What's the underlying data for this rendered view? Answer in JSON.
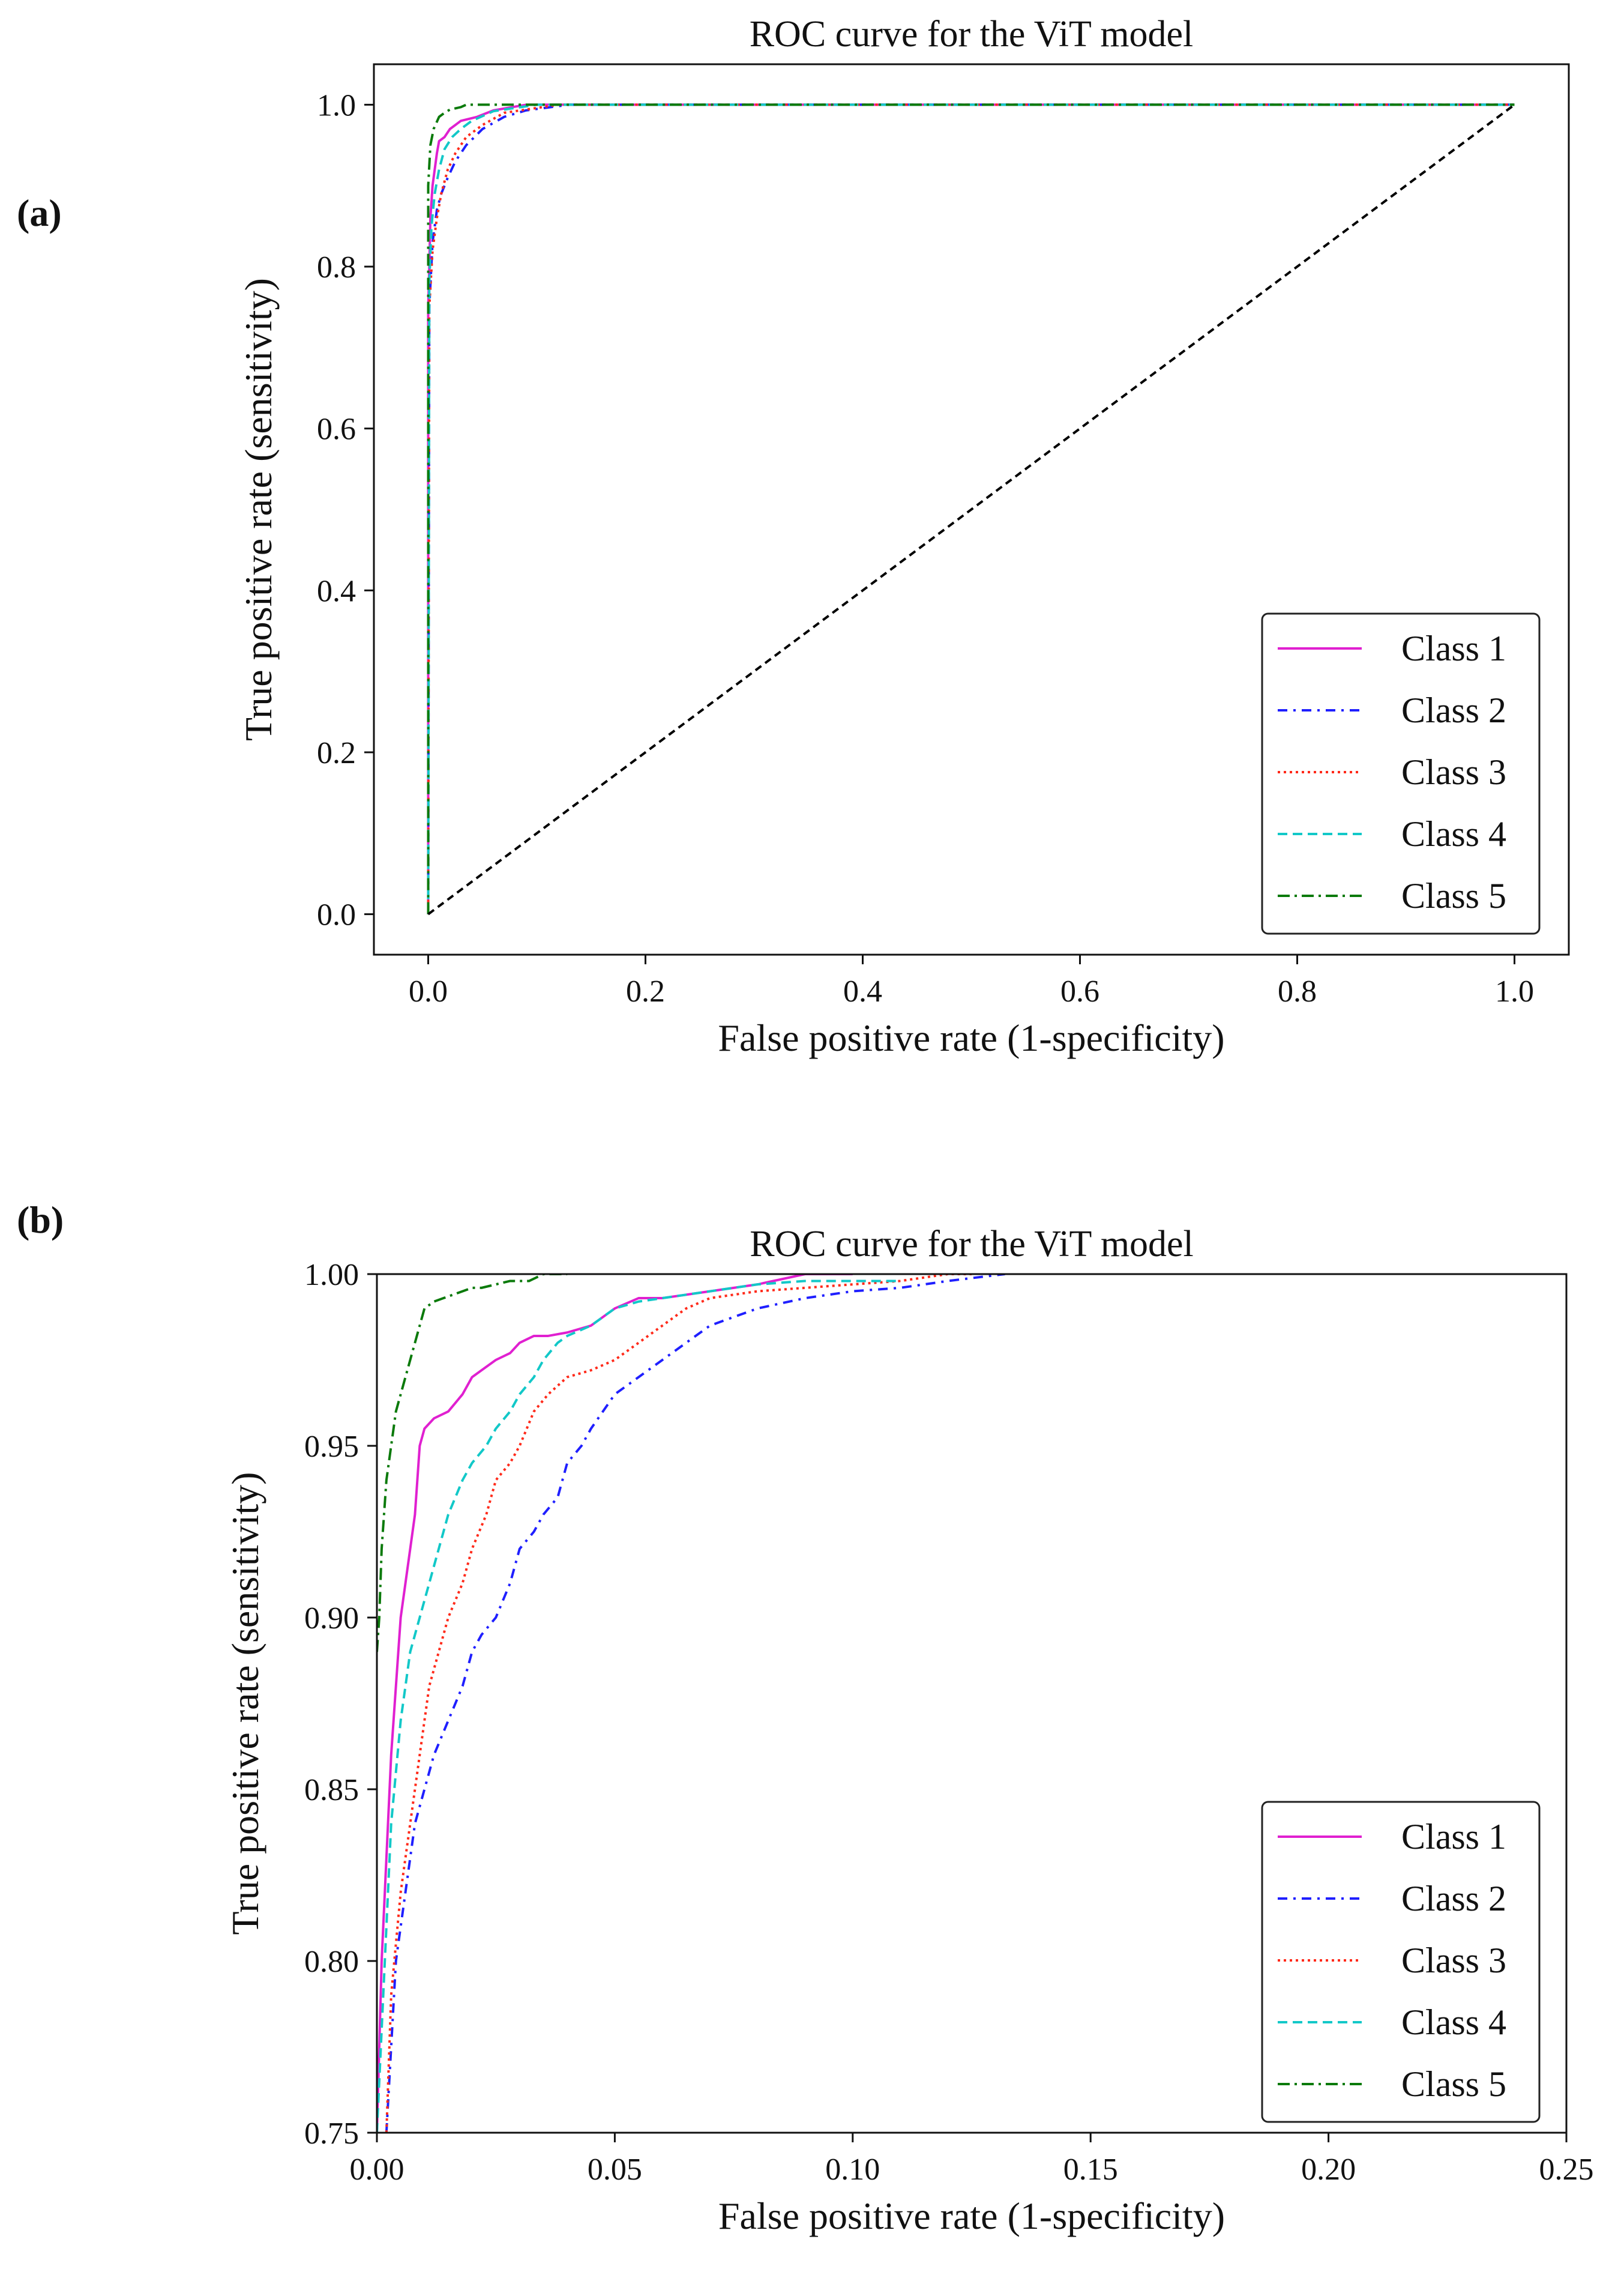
{
  "panels": [
    {
      "label": "(a)"
    },
    {
      "label": "(b)"
    }
  ],
  "legend_entries": [
    "Class 1",
    "Class 2",
    "Class 3",
    "Class 4",
    "Class 5"
  ],
  "colors": {
    "class1": "#e020d0",
    "class2": "#1f1fff",
    "class3": "#ff2a1a",
    "class4": "#12c8c8",
    "class5": "#0b7a0b",
    "diagonal": "#000000"
  },
  "chart_data": [
    {
      "type": "line",
      "title": "ROC curve for the ViT model",
      "xlabel": "False positive rate (1-specificity)",
      "ylabel": "True positive rate (sensitivity)",
      "xlim": [
        -0.05,
        1.05
      ],
      "ylim": [
        -0.05,
        1.05
      ],
      "xticks": [
        "0.0",
        "0.2",
        "0.4",
        "0.6",
        "0.8",
        "1.0"
      ],
      "yticks": [
        "0.0",
        "0.2",
        "0.4",
        "0.6",
        "0.8",
        "1.0"
      ],
      "legend_position": "lower-right",
      "series": [
        {
          "name": "Class 1",
          "x": [
            0,
            0,
            0.001,
            0.002,
            0.004,
            0.006,
            0.008,
            0.01,
            0.015,
            0.02,
            0.03,
            0.045,
            0.06,
            0.09,
            1.0
          ],
          "y": [
            0,
            0.75,
            0.8,
            0.86,
            0.9,
            0.92,
            0.94,
            0.955,
            0.96,
            0.97,
            0.98,
            0.985,
            0.993,
            1.0,
            1.0
          ]
        },
        {
          "name": "Class 2",
          "x": [
            0,
            0.001,
            0.004,
            0.008,
            0.012,
            0.018,
            0.025,
            0.035,
            0.05,
            0.07,
            0.09,
            0.13,
            1.0
          ],
          "y": [
            0,
            0.75,
            0.83,
            0.87,
            0.89,
            0.91,
            0.93,
            0.95,
            0.97,
            0.985,
            0.993,
            1.0,
            1.0
          ]
        },
        {
          "name": "Class 3",
          "x": [
            0,
            0.001,
            0.004,
            0.008,
            0.012,
            0.018,
            0.025,
            0.035,
            0.05,
            0.07,
            0.12,
            1.0
          ],
          "y": [
            0,
            0.75,
            0.82,
            0.86,
            0.89,
            0.92,
            0.94,
            0.96,
            0.975,
            0.99,
            1.0,
            1.0
          ]
        },
        {
          "name": "Class 4",
          "x": [
            0,
            0.001,
            0.003,
            0.006,
            0.01,
            0.015,
            0.022,
            0.03,
            0.04,
            0.06,
            0.1,
            1.0
          ],
          "y": [
            0,
            0.78,
            0.85,
            0.89,
            0.92,
            0.945,
            0.96,
            0.97,
            0.98,
            0.992,
            1.0,
            1.0
          ]
        },
        {
          "name": "Class 5",
          "x": [
            0,
            0,
            0.002,
            0.005,
            0.01,
            0.015,
            0.02,
            0.03,
            0.035,
            1.0
          ],
          "y": [
            0,
            0.9,
            0.95,
            0.97,
            0.985,
            0.99,
            0.994,
            0.997,
            1.0,
            1.0
          ]
        },
        {
          "name": "Chance",
          "x": [
            0,
            1.0
          ],
          "y": [
            0,
            1.0
          ]
        }
      ]
    },
    {
      "type": "line",
      "title": "ROC curve for the ViT model",
      "xlabel": "False positive rate (1-specificity)",
      "ylabel": "True positive rate (sensitivity)",
      "xlim": [
        0,
        0.25
      ],
      "ylim": [
        0.75,
        1.0
      ],
      "xticks": [
        "0.00",
        "0.05",
        "0.10",
        "0.15",
        "0.20",
        "0.25"
      ],
      "yticks": [
        "0.75",
        "0.80",
        "0.85",
        "0.90",
        "0.95",
        "1.00"
      ],
      "legend_position": "lower-right",
      "series": [
        {
          "name": "Class 1",
          "x": [
            0,
            0.001,
            0.002,
            0.003,
            0.004,
            0.005,
            0.006,
            0.007,
            0.008,
            0.009,
            0.01,
            0.012,
            0.015,
            0.018,
            0.02,
            0.022,
            0.025,
            0.028,
            0.03,
            0.033,
            0.036,
            0.04,
            0.045,
            0.05,
            0.055,
            0.06,
            0.07,
            0.08,
            0.09,
            0.1
          ],
          "y": [
            0.75,
            0.8,
            0.83,
            0.86,
            0.88,
            0.9,
            0.91,
            0.92,
            0.93,
            0.95,
            0.955,
            0.958,
            0.96,
            0.965,
            0.97,
            0.972,
            0.975,
            0.977,
            0.98,
            0.982,
            0.982,
            0.983,
            0.985,
            0.99,
            0.993,
            0.993,
            0.995,
            0.997,
            1.0,
            1.0
          ]
        },
        {
          "name": "Class 2",
          "x": [
            0.002,
            0.004,
            0.006,
            0.008,
            0.01,
            0.012,
            0.015,
            0.018,
            0.02,
            0.022,
            0.025,
            0.028,
            0.03,
            0.033,
            0.035,
            0.038,
            0.04,
            0.043,
            0.045,
            0.05,
            0.055,
            0.06,
            0.065,
            0.07,
            0.08,
            0.09,
            0.1,
            0.11,
            0.12,
            0.132
          ],
          "y": [
            0.75,
            0.8,
            0.82,
            0.84,
            0.85,
            0.86,
            0.87,
            0.88,
            0.89,
            0.895,
            0.9,
            0.91,
            0.92,
            0.925,
            0.93,
            0.935,
            0.945,
            0.95,
            0.955,
            0.965,
            0.97,
            0.975,
            0.98,
            0.985,
            0.99,
            0.993,
            0.995,
            0.996,
            0.998,
            1.0
          ]
        },
        {
          "name": "Class 3",
          "x": [
            0.002,
            0.003,
            0.005,
            0.007,
            0.009,
            0.011,
            0.013,
            0.015,
            0.018,
            0.02,
            0.023,
            0.025,
            0.028,
            0.03,
            0.033,
            0.036,
            0.04,
            0.045,
            0.05,
            0.055,
            0.06,
            0.065,
            0.07,
            0.08,
            0.09,
            0.1,
            0.11,
            0.12,
            0.125
          ],
          "y": [
            0.75,
            0.79,
            0.82,
            0.84,
            0.86,
            0.88,
            0.89,
            0.9,
            0.91,
            0.92,
            0.93,
            0.94,
            0.945,
            0.95,
            0.96,
            0.965,
            0.97,
            0.972,
            0.975,
            0.98,
            0.985,
            0.99,
            0.993,
            0.995,
            0.996,
            0.997,
            0.998,
            1.0,
            1.0
          ]
        },
        {
          "name": "Class 4",
          "x": [
            0,
            0.001,
            0.002,
            0.003,
            0.005,
            0.007,
            0.009,
            0.011,
            0.013,
            0.015,
            0.018,
            0.02,
            0.023,
            0.025,
            0.028,
            0.03,
            0.033,
            0.035,
            0.038,
            0.04,
            0.045,
            0.05,
            0.055,
            0.06,
            0.07,
            0.08,
            0.09,
            0.1,
            0.11
          ],
          "y": [
            0.75,
            0.78,
            0.81,
            0.84,
            0.87,
            0.89,
            0.9,
            0.91,
            0.92,
            0.93,
            0.94,
            0.945,
            0.95,
            0.955,
            0.96,
            0.965,
            0.97,
            0.975,
            0.98,
            0.982,
            0.985,
            0.99,
            0.992,
            0.993,
            0.995,
            0.997,
            0.998,
            0.998,
            0.998
          ]
        },
        {
          "name": "Class 5",
          "x": [
            0,
            0.0005,
            0.001,
            0.002,
            0.003,
            0.004,
            0.005,
            0.006,
            0.007,
            0.008,
            0.009,
            0.01,
            0.012,
            0.014,
            0.016,
            0.018,
            0.02,
            0.022,
            0.025,
            0.028,
            0.03,
            0.032,
            0.035,
            0.04
          ],
          "y": [
            0.89,
            0.9,
            0.92,
            0.94,
            0.95,
            0.96,
            0.965,
            0.97,
            0.975,
            0.98,
            0.985,
            0.99,
            0.992,
            0.993,
            0.994,
            0.995,
            0.996,
            0.996,
            0.997,
            0.998,
            0.998,
            0.998,
            1.0,
            1.0
          ]
        }
      ]
    }
  ]
}
